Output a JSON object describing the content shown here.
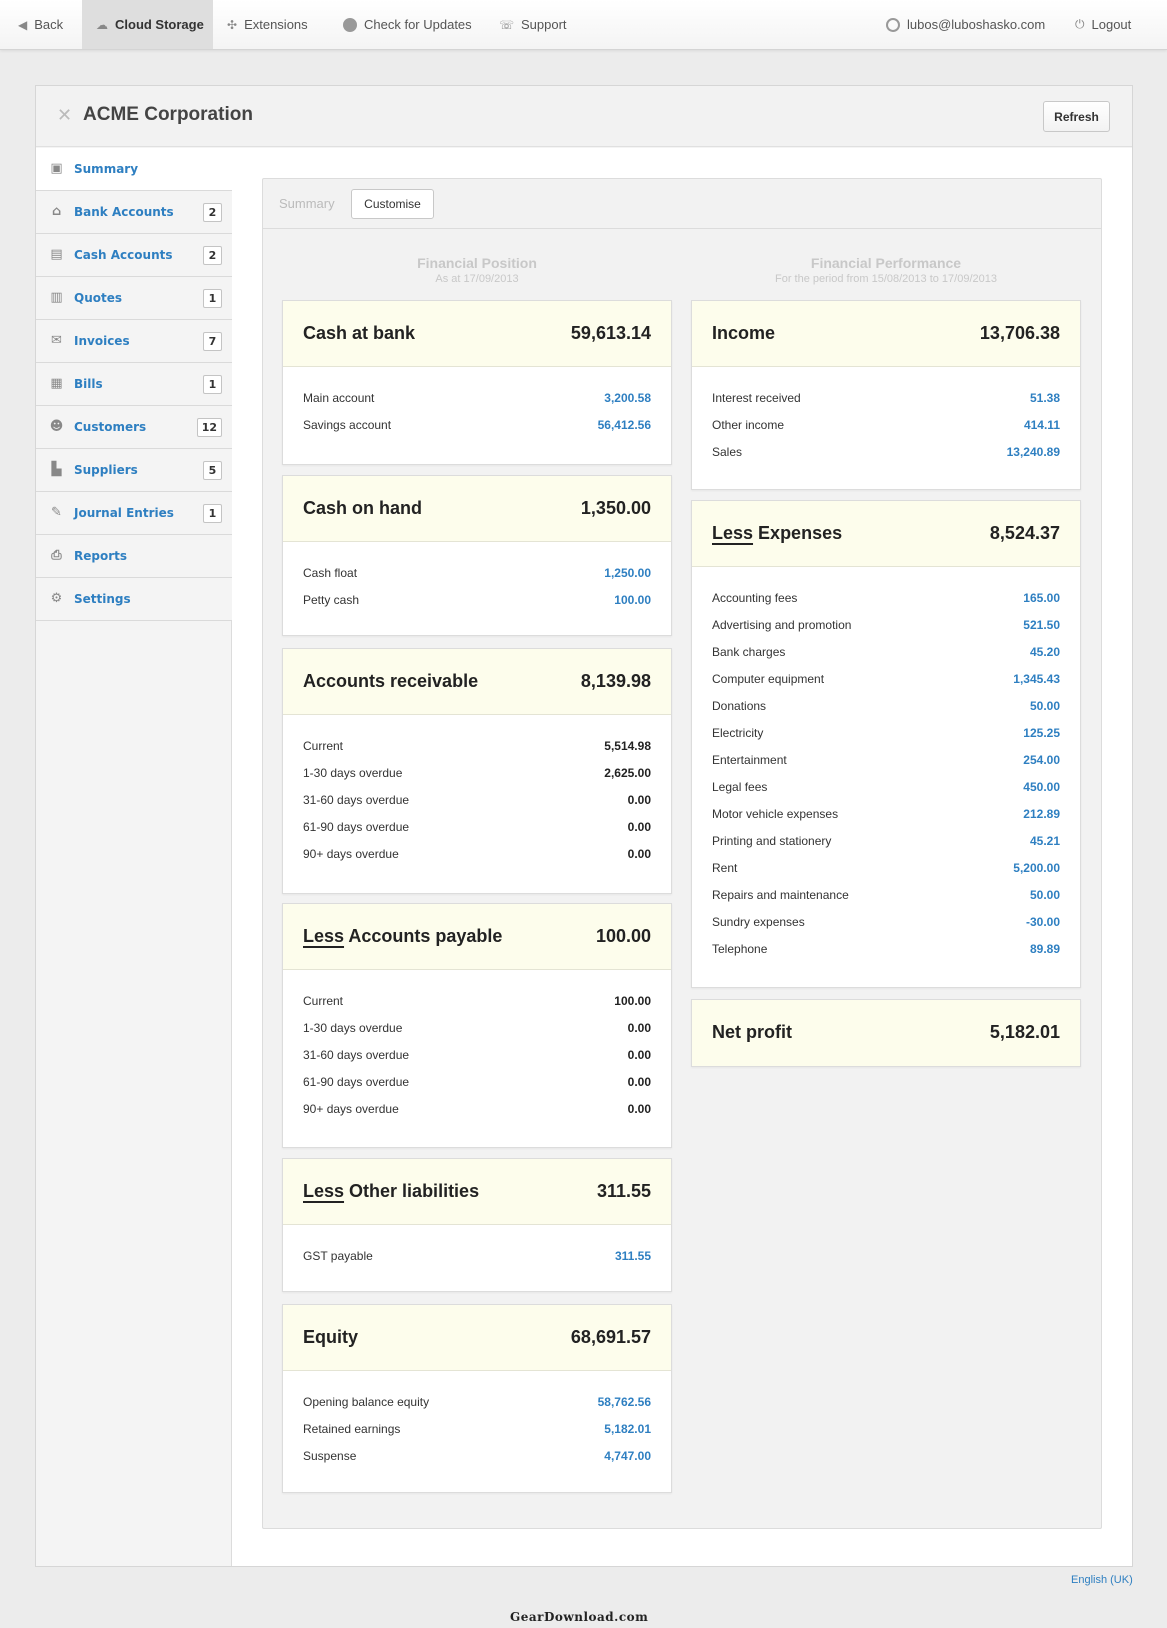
{
  "topbar": {
    "back": "Back",
    "cloud": "Cloud Storage",
    "extensions": "Extensions",
    "updates": "Check for Updates",
    "support": "Support",
    "user": "lubos@luboshasko.com",
    "logout": "Logout"
  },
  "header": {
    "company": "ACME Corporation",
    "refresh": "Refresh"
  },
  "sidebar": {
    "items": [
      {
        "label": "Summary",
        "badge": ""
      },
      {
        "label": "Bank Accounts",
        "badge": "2"
      },
      {
        "label": "Cash Accounts",
        "badge": "2"
      },
      {
        "label": "Quotes",
        "badge": "1"
      },
      {
        "label": "Invoices",
        "badge": "7"
      },
      {
        "label": "Bills",
        "badge": "1"
      },
      {
        "label": "Customers",
        "badge": "12"
      },
      {
        "label": "Suppliers",
        "badge": "5"
      },
      {
        "label": "Journal Entries",
        "badge": "1"
      },
      {
        "label": "Reports",
        "badge": ""
      },
      {
        "label": "Settings",
        "badge": ""
      }
    ]
  },
  "tabs": {
    "summary": "Summary",
    "customise": "Customise"
  },
  "position": {
    "title": "Financial Position",
    "sub": "As at 17/09/2013"
  },
  "performance": {
    "title": "Financial Performance",
    "sub": "For the period from 15/08/2013 to 17/09/2013"
  },
  "less_word": "Less",
  "cards": {
    "cash_bank": {
      "title": "Cash at bank",
      "total": "59,613.14",
      "rows": [
        [
          "Main account",
          "3,200.58"
        ],
        [
          "Savings account",
          "56,412.56"
        ]
      ]
    },
    "cash_hand": {
      "title": "Cash on hand",
      "total": "1,350.00",
      "rows": [
        [
          "Cash float",
          "1,250.00"
        ],
        [
          "Petty cash",
          "100.00"
        ]
      ]
    },
    "ar": {
      "title": "Accounts receivable",
      "total": "8,139.98",
      "rows": [
        [
          "Current",
          "5,514.98"
        ],
        [
          "1-30 days overdue",
          "2,625.00"
        ],
        [
          "31-60 days overdue",
          "0.00"
        ],
        [
          "61-90 days overdue",
          "0.00"
        ],
        [
          "90+ days overdue",
          "0.00"
        ]
      ]
    },
    "ap": {
      "title": "Accounts payable",
      "total": "100.00",
      "rows": [
        [
          "Current",
          "100.00"
        ],
        [
          "1-30 days overdue",
          "0.00"
        ],
        [
          "31-60 days overdue",
          "0.00"
        ],
        [
          "61-90 days overdue",
          "0.00"
        ],
        [
          "90+ days overdue",
          "0.00"
        ]
      ]
    },
    "ol": {
      "title": "Other liabilities",
      "total": "311.55",
      "rows": [
        [
          "GST payable",
          "311.55"
        ]
      ]
    },
    "equity": {
      "title": "Equity",
      "total": "68,691.57",
      "rows": [
        [
          "Opening balance equity",
          "58,762.56"
        ],
        [
          "Retained earnings",
          "5,182.01"
        ],
        [
          "Suspense",
          "4,747.00"
        ]
      ]
    },
    "income": {
      "title": "Income",
      "total": "13,706.38",
      "rows": [
        [
          "Interest received",
          "51.38"
        ],
        [
          "Other income",
          "414.11"
        ],
        [
          "Sales",
          "13,240.89"
        ]
      ]
    },
    "expenses": {
      "title": "Expenses",
      "total": "8,524.37",
      "rows": [
        [
          "Accounting fees",
          "165.00"
        ],
        [
          "Advertising and promotion",
          "521.50"
        ],
        [
          "Bank charges",
          "45.20"
        ],
        [
          "Computer equipment",
          "1,345.43"
        ],
        [
          "Donations",
          "50.00"
        ],
        [
          "Electricity",
          "125.25"
        ],
        [
          "Entertainment",
          "254.00"
        ],
        [
          "Legal fees",
          "450.00"
        ],
        [
          "Motor vehicle expenses",
          "212.89"
        ],
        [
          "Printing and stationery",
          "45.21"
        ],
        [
          "Rent",
          "5,200.00"
        ],
        [
          "Repairs and maintenance",
          "50.00"
        ],
        [
          "Sundry expenses",
          "-30.00"
        ],
        [
          "Telephone",
          "89.89"
        ]
      ]
    },
    "net": {
      "title": "Net profit",
      "total": "5,182.01"
    }
  },
  "footer": {
    "lang": "English (UK)",
    "watermark": "GearDownload.com"
  }
}
